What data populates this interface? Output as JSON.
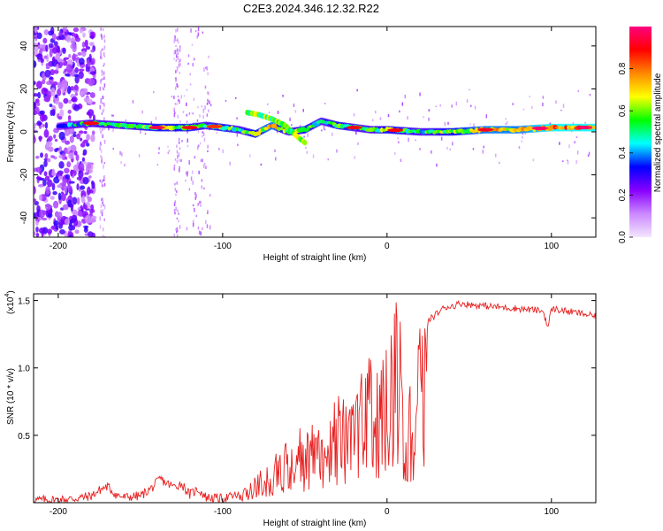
{
  "figure": {
    "title": "C2E3.2024.346.12.32.R22"
  },
  "chart_data": [
    {
      "type": "heatmap",
      "xlabel": "Height of straight line (km)",
      "ylabel": "Frequency (Hz)",
      "xlim": [
        -215,
        127
      ],
      "ylim": [
        -49,
        49
      ],
      "xticks": [
        -200,
        -100,
        0,
        100
      ],
      "xtick_labels": [
        "-200",
        "-100",
        "0",
        "100"
      ],
      "yticks": [
        -40,
        -20,
        0,
        20,
        40
      ],
      "ytick_labels": [
        "-40",
        "-20",
        "0",
        "20",
        "40"
      ],
      "grid": false,
      "colorbar": {
        "label": "Normalized spectral amplitude",
        "range": [
          0,
          1
        ],
        "ticks": [
          0.0,
          0.2,
          0.4,
          0.6,
          0.8
        ],
        "tick_labels": [
          "0.0",
          "0.2",
          "0.4",
          "0.6",
          "0.8"
        ],
        "colors": [
          "#f3e6ff",
          "#cc88ff",
          "#8800ff",
          "#0000ff",
          "#00ffff",
          "#00ff00",
          "#ffff00",
          "#ff8800",
          "#ff0000",
          "#ff0080"
        ]
      },
      "ridge": {
        "x": [
          -205,
          -195,
          -180,
          -160,
          -140,
          -120,
          -110,
          -100,
          -90,
          -80,
          -70,
          -60,
          -50,
          -40,
          -30,
          -20,
          -10,
          0,
          20,
          40,
          60,
          80,
          100,
          127
        ],
        "frequency": [
          2,
          3,
          4,
          3,
          2,
          2,
          3,
          2,
          1,
          -1,
          3,
          0,
          1,
          5,
          3,
          2,
          1,
          1,
          0,
          0,
          1,
          1,
          2,
          2
        ],
        "amplitude": [
          0.3,
          0.4,
          0.5,
          0.5,
          0.6,
          0.6,
          0.5,
          0.6,
          0.5,
          0.6,
          0.7,
          0.5,
          0.6,
          0.5,
          0.6,
          0.5,
          0.5,
          0.6,
          0.5,
          0.6,
          0.7,
          0.7,
          0.8,
          0.8
        ]
      },
      "branch": {
        "x": [
          -85,
          -78,
          -70,
          -62,
          -55,
          -50
        ],
        "frequency": [
          9,
          8,
          6,
          3,
          -2,
          -5
        ]
      },
      "noise_region": {
        "x": [
          -215,
          -178
        ],
        "note_color": "#7a1fff"
      }
    },
    {
      "type": "line",
      "xlabel": "Height of straight line (km)",
      "ylabel": "SNR (10 * v/v)",
      "y_scale_label": "(x10",
      "y_scale_exp": "4",
      "xlim": [
        -215,
        127
      ],
      "ylim": [
        0.0,
        1.55
      ],
      "xticks": [
        -200,
        -100,
        0,
        100
      ],
      "xtick_labels": [
        "-200",
        "-100",
        "0",
        "100"
      ],
      "yticks": [
        0.5,
        1.0,
        1.5
      ],
      "ytick_labels": [
        "0.5",
        "1.0",
        "1.5"
      ],
      "grid": false,
      "series": [
        {
          "color": "#e82020",
          "x": [
            -215,
            -200,
            -190,
            -180,
            -174,
            -170,
            -165,
            -160,
            -150,
            -142,
            -138,
            -135,
            -130,
            -125,
            -120,
            -115,
            -110,
            -100,
            -90,
            -85,
            -80,
            -75,
            -70,
            -65,
            -60,
            -55,
            -50,
            -45,
            -40,
            -35,
            -30,
            -25,
            -20,
            -15,
            -10,
            -5,
            0,
            2,
            5,
            8,
            10,
            12,
            15,
            20,
            25,
            30,
            35,
            40,
            45,
            50,
            60,
            70,
            80,
            90,
            95,
            98,
            100,
            110,
            120,
            127
          ],
          "y": [
            0.02,
            0.02,
            0.03,
            0.05,
            0.1,
            0.12,
            0.06,
            0.04,
            0.05,
            0.12,
            0.18,
            0.15,
            0.12,
            0.14,
            0.06,
            0.1,
            0.04,
            0.03,
            0.06,
            0.12,
            0.2,
            0.28,
            0.3,
            0.4,
            0.48,
            0.55,
            0.52,
            0.58,
            0.65,
            0.7,
            0.8,
            0.75,
            0.78,
            0.95,
            1.05,
            1.1,
            1.2,
            1.35,
            1.45,
            1.4,
            0.6,
            0.45,
            1.05,
            1.25,
            1.35,
            1.4,
            1.45,
            1.46,
            1.48,
            1.47,
            1.46,
            1.45,
            1.44,
            1.43,
            1.42,
            1.3,
            1.44,
            1.42,
            1.4,
            1.38
          ]
        }
      ]
    }
  ]
}
